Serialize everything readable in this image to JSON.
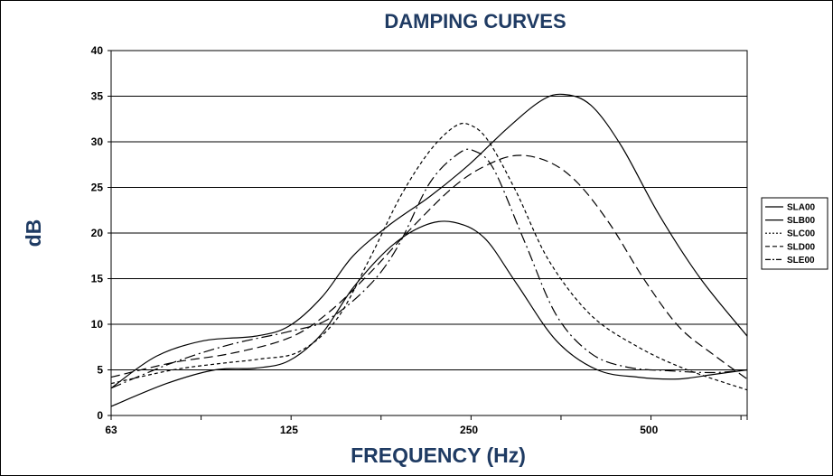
{
  "chart_data": {
    "type": "line",
    "title": "DAMPING CURVES",
    "xlabel": "FREQUENCY (Hz)",
    "ylabel": "dB",
    "x_scale": "log2",
    "xlim": [
      63,
      730
    ],
    "ylim": [
      0,
      40
    ],
    "x_ticks": [
      63,
      125,
      250,
      500
    ],
    "y_ticks": [
      0,
      5,
      10,
      15,
      20,
      25,
      30,
      35,
      40
    ],
    "grid": "horizontal",
    "legend_position": "right",
    "series": [
      {
        "name": "SLA00",
        "dash": "solid",
        "x": [
          63,
          78,
          94,
          110,
          125,
          142,
          160,
          185,
          210,
          235,
          265,
          300,
          350,
          410,
          480,
          560,
          640,
          730
        ],
        "y": [
          1,
          3.5,
          5,
          5.2,
          6,
          9,
          14,
          18.5,
          20.8,
          21.2,
          19.5,
          14.5,
          8.2,
          5,
          4.2,
          4,
          4.5,
          5
        ]
      },
      {
        "name": "SLB00",
        "dash": "solid",
        "x": [
          63,
          75,
          90,
          110,
          125,
          142,
          160,
          185,
          215,
          250,
          290,
          330,
          360,
          400,
          450,
          520,
          610,
          730
        ],
        "y": [
          3,
          6.5,
          8.2,
          8.7,
          9.8,
          13,
          17.5,
          21,
          24,
          27.5,
          31.5,
          34.5,
          35.2,
          34,
          29.5,
          22,
          15,
          8.7
        ]
      },
      {
        "name": "SLC00",
        "dash": "4,3",
        "x": [
          63,
          80,
          96,
          112,
          130,
          150,
          170,
          192,
          215,
          237,
          252,
          270,
          300,
          340,
          400,
          480,
          580,
          730
        ],
        "y": [
          3.5,
          5,
          5.7,
          6.2,
          7,
          10.5,
          17,
          24,
          29,
          31.7,
          31.8,
          30,
          24.5,
          17,
          11,
          7.5,
          5,
          2.8
        ]
      },
      {
        "name": "SLD00",
        "dash": "10,5",
        "x": [
          63,
          80,
          100,
          125,
          145,
          170,
          200,
          235,
          265,
          300,
          340,
          380,
          430,
          490,
          560,
          640,
          730
        ],
        "y": [
          4.2,
          5.8,
          6.8,
          8.5,
          11.2,
          15.5,
          20.5,
          25,
          27.3,
          28.5,
          27.8,
          25.5,
          21,
          15,
          9.8,
          6.7,
          4
        ]
      },
      {
        "name": "SLE00",
        "dash": "12,4,2,4",
        "x": [
          63,
          80,
          100,
          125,
          145,
          170,
          190,
          215,
          240,
          255,
          275,
          310,
          350,
          400,
          460,
          540,
          640,
          730
        ],
        "y": [
          3,
          5.8,
          7.8,
          9.2,
          10.5,
          14.2,
          18.5,
          25.5,
          28.7,
          29,
          27,
          19,
          11,
          6.8,
          5.3,
          4.9,
          4.7,
          5
        ]
      }
    ]
  }
}
